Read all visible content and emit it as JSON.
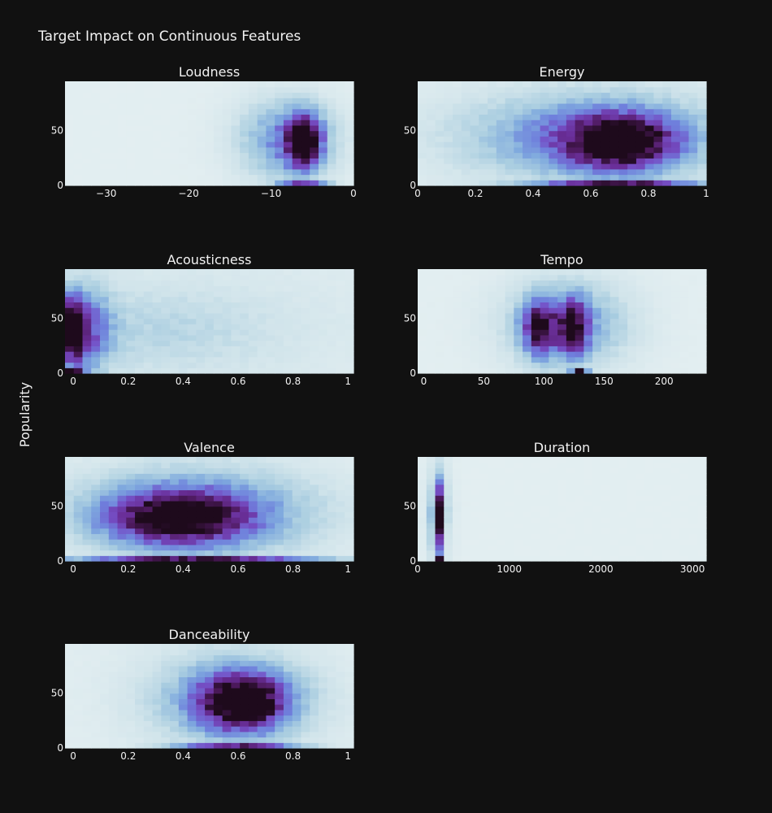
{
  "chart_data": {
    "type": "heatmap",
    "title": "Target Impact on Continuous Features",
    "ylabel": "Popularity",
    "colorscale": [
      "#e6f0f2",
      "#cfe3ea",
      "#a9cde0",
      "#7fa9de",
      "#6f7fdc",
      "#7550c6",
      "#6a2f9a",
      "#4e1a5e",
      "#1e0a1c"
    ],
    "panels": [
      {
        "title": "Loudness",
        "xlim": [
          -35,
          0
        ],
        "ylim": [
          0,
          95
        ],
        "xticks": [
          {
            "v": -30,
            "label": "−30"
          },
          {
            "v": -20,
            "label": "−20"
          },
          {
            "v": -10,
            "label": "−10"
          },
          {
            "v": 0,
            "label": "0"
          }
        ],
        "yticks": [
          {
            "v": 0,
            "label": "0"
          },
          {
            "v": 50,
            "label": "50"
          }
        ],
        "blobs": [
          {
            "x": -6,
            "y": 40,
            "sx": 1.4,
            "sy": 16,
            "w": 1.0
          },
          {
            "x": -8,
            "y": 42,
            "sx": 4,
            "sy": 25,
            "w": 0.45
          }
        ],
        "baseline": {
          "x": -6,
          "sx": 2,
          "w": 0.55
        },
        "bg": 0.02
      },
      {
        "title": "Energy",
        "xlim": [
          0,
          1
        ],
        "ylim": [
          0,
          95
        ],
        "xticks": [
          {
            "v": 0,
            "label": "0"
          },
          {
            "v": 0.2,
            "label": "0.2"
          },
          {
            "v": 0.4,
            "label": "0.4"
          },
          {
            "v": 0.6,
            "label": "0.6"
          },
          {
            "v": 0.8,
            "label": "0.8"
          },
          {
            "v": 1,
            "label": "1"
          }
        ],
        "yticks": [
          {
            "v": 0,
            "label": "0"
          },
          {
            "v": 50,
            "label": "50"
          }
        ],
        "blobs": [
          {
            "x": 0.7,
            "y": 40,
            "sx": 0.13,
            "sy": 17,
            "w": 0.95
          },
          {
            "x": 0.6,
            "y": 45,
            "sx": 0.3,
            "sy": 27,
            "w": 0.45
          }
        ],
        "baseline": {
          "x": 0.7,
          "sx": 0.2,
          "w": 0.65
        },
        "bg": 0.04
      },
      {
        "title": "Acousticness",
        "xlim": [
          -0.03,
          1.02
        ],
        "ylim": [
          0,
          95
        ],
        "xticks": [
          {
            "v": 0,
            "label": "0"
          },
          {
            "v": 0.2,
            "label": "0.2"
          },
          {
            "v": 0.4,
            "label": "0.4"
          },
          {
            "v": 0.6,
            "label": "0.6"
          },
          {
            "v": 0.8,
            "label": "0.8"
          },
          {
            "v": 1,
            "label": "1"
          }
        ],
        "yticks": [
          {
            "v": 0,
            "label": "0"
          },
          {
            "v": 50,
            "label": "50"
          }
        ],
        "blobs": [
          {
            "x": 0,
            "y": 40,
            "sx": 0.025,
            "sy": 20,
            "w": 1.0
          },
          {
            "x": 0.05,
            "y": 40,
            "sx": 0.06,
            "sy": 25,
            "w": 0.5
          },
          {
            "x": 0.3,
            "y": 40,
            "sx": 0.35,
            "sy": 30,
            "w": 0.15
          }
        ],
        "baseline": {
          "x": 0,
          "sx": 0.03,
          "w": 0.7
        },
        "bg": 0.05
      },
      {
        "title": "Tempo",
        "xlim": [
          -5,
          235
        ],
        "ylim": [
          0,
          95
        ],
        "xticks": [
          {
            "v": 0,
            "label": "0"
          },
          {
            "v": 50,
            "label": "50"
          },
          {
            "v": 100,
            "label": "100"
          },
          {
            "v": 150,
            "label": "150"
          },
          {
            "v": 200,
            "label": "200"
          }
        ],
        "yticks": [
          {
            "v": 0,
            "label": "0"
          },
          {
            "v": 50,
            "label": "50"
          }
        ],
        "blobs": [
          {
            "x": 97,
            "y": 42,
            "sx": 10,
            "sy": 17,
            "w": 0.75
          },
          {
            "x": 125,
            "y": 42,
            "sx": 8,
            "sy": 17,
            "w": 0.75
          },
          {
            "x": 120,
            "y": 45,
            "sx": 35,
            "sy": 27,
            "w": 0.4
          }
        ],
        "baseline": {
          "x": 130,
          "sx": 4,
          "w": 1.0
        },
        "bg": 0.02
      },
      {
        "title": "Valence",
        "xlim": [
          -0.03,
          1.02
        ],
        "ylim": [
          0,
          95
        ],
        "xticks": [
          {
            "v": 0,
            "label": "0"
          },
          {
            "v": 0.2,
            "label": "0.2"
          },
          {
            "v": 0.4,
            "label": "0.4"
          },
          {
            "v": 0.6,
            "label": "0.6"
          },
          {
            "v": 0.8,
            "label": "0.8"
          },
          {
            "v": 1,
            "label": "1"
          }
        ],
        "yticks": [
          {
            "v": 0,
            "label": "0"
          },
          {
            "v": 50,
            "label": "50"
          }
        ],
        "blobs": [
          {
            "x": 0.38,
            "y": 40,
            "sx": 0.17,
            "sy": 16,
            "w": 0.85
          },
          {
            "x": 0.45,
            "y": 45,
            "sx": 0.3,
            "sy": 28,
            "w": 0.45
          }
        ],
        "baseline": {
          "x": 0.45,
          "sx": 0.3,
          "w": 0.7
        },
        "bg": 0.03
      },
      {
        "title": "Duration",
        "xlim": [
          0,
          3150
        ],
        "ylim": [
          0,
          95
        ],
        "xticks": [
          {
            "v": 0,
            "label": "0"
          },
          {
            "v": 1000,
            "label": "1000"
          },
          {
            "v": 2000,
            "label": "2000"
          },
          {
            "v": 3000,
            "label": "3000"
          }
        ],
        "yticks": [
          {
            "v": 0,
            "label": "0"
          },
          {
            "v": 50,
            "label": "50"
          }
        ],
        "blobs": [
          {
            "x": 220,
            "y": 40,
            "sx": 35,
            "sy": 22,
            "w": 1.0
          },
          {
            "x": 230,
            "y": 45,
            "sx": 90,
            "sy": 30,
            "w": 0.25
          }
        ],
        "baseline": {
          "x": 220,
          "sx": 25,
          "w": 0.9
        },
        "bg": 0.02
      },
      {
        "title": "Danceability",
        "xlim": [
          -0.03,
          1.02
        ],
        "ylim": [
          0,
          95
        ],
        "xticks": [
          {
            "v": 0,
            "label": "0"
          },
          {
            "v": 0.2,
            "label": "0.2"
          },
          {
            "v": 0.4,
            "label": "0.4"
          },
          {
            "v": 0.6,
            "label": "0.6"
          },
          {
            "v": 0.8,
            "label": "0.8"
          },
          {
            "v": 1,
            "label": "1"
          }
        ],
        "yticks": [
          {
            "v": 0,
            "label": "0"
          },
          {
            "v": 50,
            "label": "50"
          }
        ],
        "blobs": [
          {
            "x": 0.62,
            "y": 42,
            "sx": 0.1,
            "sy": 17,
            "w": 0.95
          },
          {
            "x": 0.58,
            "y": 45,
            "sx": 0.2,
            "sy": 28,
            "w": 0.45
          }
        ],
        "baseline": {
          "x": 0.6,
          "sx": 0.15,
          "w": 0.6
        },
        "bg": 0.03
      }
    ]
  }
}
